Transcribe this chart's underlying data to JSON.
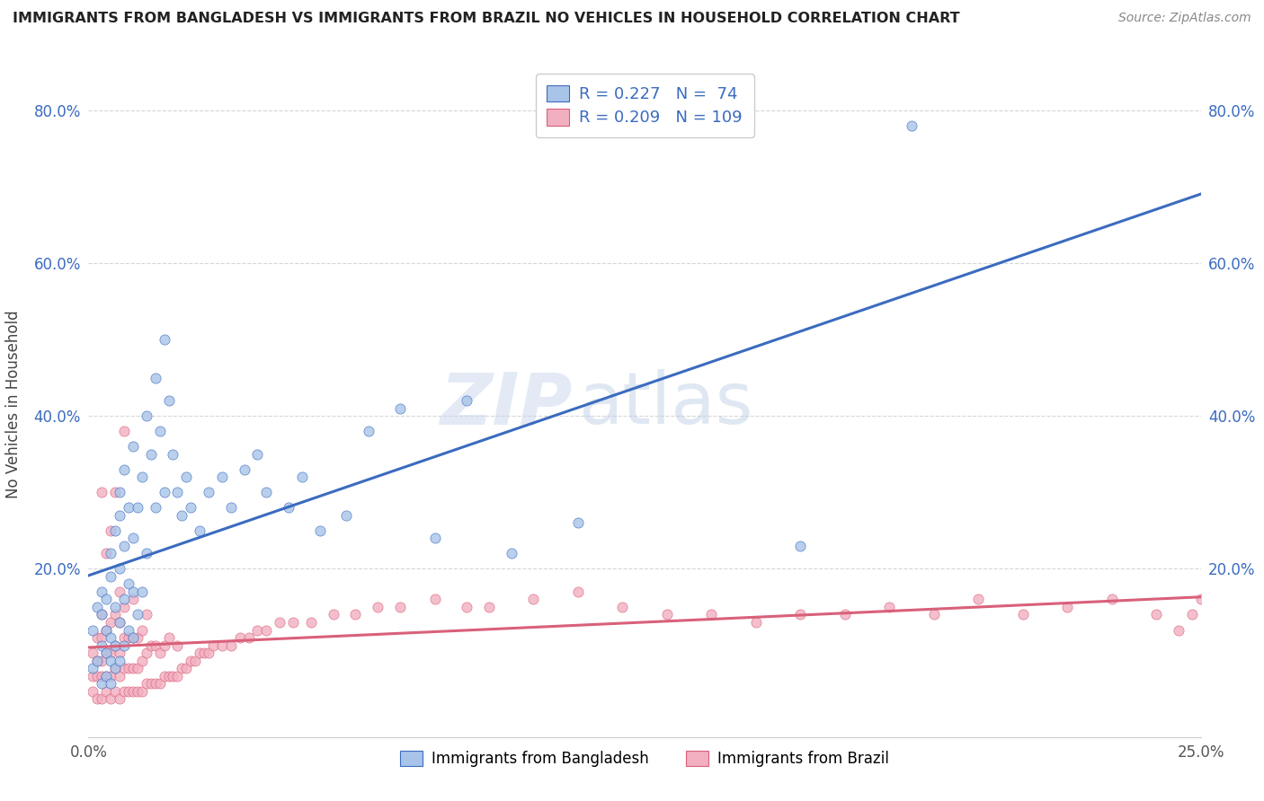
{
  "title": "IMMIGRANTS FROM BANGLADESH VS IMMIGRANTS FROM BRAZIL NO VEHICLES IN HOUSEHOLD CORRELATION CHART",
  "source": "Source: ZipAtlas.com",
  "ylabel": "No Vehicles in Household",
  "xlim": [
    0.0,
    0.25
  ],
  "ylim": [
    -0.02,
    0.85
  ],
  "xtick_labels": [
    "0.0%",
    "25.0%"
  ],
  "ytick_labels": [
    "20.0%",
    "40.0%",
    "60.0%",
    "80.0%"
  ],
  "ytick_values": [
    0.2,
    0.4,
    0.6,
    0.8
  ],
  "xtick_values": [
    0.0,
    0.25
  ],
  "color_bangladesh": "#a8c4e8",
  "color_brazil": "#f2afc0",
  "line_color_bangladesh": "#3b6bbf",
  "line_color_brazil": "#d9607a",
  "legend_r_bangladesh": "0.227",
  "legend_n_bangladesh": "74",
  "legend_r_brazil": "0.209",
  "legend_n_brazil": "109",
  "watermark_zip": "ZIP",
  "watermark_atlas": "atlas",
  "legend_label_bangladesh": "Immigrants from Bangladesh",
  "legend_label_brazil": "Immigrants from Brazil",
  "bangladesh_x": [
    0.001,
    0.001,
    0.002,
    0.002,
    0.003,
    0.003,
    0.003,
    0.003,
    0.004,
    0.004,
    0.004,
    0.004,
    0.005,
    0.005,
    0.005,
    0.005,
    0.005,
    0.006,
    0.006,
    0.006,
    0.006,
    0.007,
    0.007,
    0.007,
    0.007,
    0.007,
    0.008,
    0.008,
    0.008,
    0.008,
    0.009,
    0.009,
    0.009,
    0.01,
    0.01,
    0.01,
    0.01,
    0.011,
    0.011,
    0.012,
    0.012,
    0.013,
    0.013,
    0.014,
    0.015,
    0.015,
    0.016,
    0.017,
    0.017,
    0.018,
    0.019,
    0.02,
    0.021,
    0.022,
    0.023,
    0.025,
    0.027,
    0.03,
    0.032,
    0.035,
    0.038,
    0.04,
    0.045,
    0.048,
    0.052,
    0.058,
    0.063,
    0.07,
    0.078,
    0.085,
    0.095,
    0.11,
    0.16,
    0.185
  ],
  "bangladesh_y": [
    0.07,
    0.12,
    0.08,
    0.15,
    0.05,
    0.1,
    0.14,
    0.17,
    0.06,
    0.09,
    0.12,
    0.16,
    0.05,
    0.08,
    0.11,
    0.19,
    0.22,
    0.07,
    0.1,
    0.15,
    0.25,
    0.08,
    0.13,
    0.2,
    0.27,
    0.3,
    0.1,
    0.16,
    0.23,
    0.33,
    0.12,
    0.18,
    0.28,
    0.11,
    0.17,
    0.24,
    0.36,
    0.14,
    0.28,
    0.17,
    0.32,
    0.22,
    0.4,
    0.35,
    0.28,
    0.45,
    0.38,
    0.3,
    0.5,
    0.42,
    0.35,
    0.3,
    0.27,
    0.32,
    0.28,
    0.25,
    0.3,
    0.32,
    0.28,
    0.33,
    0.35,
    0.3,
    0.28,
    0.32,
    0.25,
    0.27,
    0.38,
    0.41,
    0.24,
    0.42,
    0.22,
    0.26,
    0.23,
    0.78
  ],
  "brazil_x": [
    0.001,
    0.001,
    0.001,
    0.002,
    0.002,
    0.002,
    0.002,
    0.003,
    0.003,
    0.003,
    0.003,
    0.003,
    0.004,
    0.004,
    0.004,
    0.004,
    0.005,
    0.005,
    0.005,
    0.005,
    0.006,
    0.006,
    0.006,
    0.006,
    0.007,
    0.007,
    0.007,
    0.007,
    0.007,
    0.008,
    0.008,
    0.008,
    0.008,
    0.009,
    0.009,
    0.009,
    0.01,
    0.01,
    0.01,
    0.01,
    0.011,
    0.011,
    0.011,
    0.012,
    0.012,
    0.012,
    0.013,
    0.013,
    0.013,
    0.014,
    0.014,
    0.015,
    0.015,
    0.016,
    0.016,
    0.017,
    0.017,
    0.018,
    0.018,
    0.019,
    0.02,
    0.02,
    0.021,
    0.022,
    0.023,
    0.024,
    0.025,
    0.026,
    0.027,
    0.028,
    0.03,
    0.032,
    0.034,
    0.036,
    0.038,
    0.04,
    0.043,
    0.046,
    0.05,
    0.055,
    0.06,
    0.065,
    0.07,
    0.078,
    0.085,
    0.09,
    0.1,
    0.11,
    0.12,
    0.13,
    0.14,
    0.15,
    0.16,
    0.17,
    0.18,
    0.19,
    0.2,
    0.21,
    0.22,
    0.23,
    0.24,
    0.245,
    0.248,
    0.25,
    0.003,
    0.004,
    0.005,
    0.006,
    0.008
  ],
  "brazil_y": [
    0.04,
    0.06,
    0.09,
    0.03,
    0.06,
    0.08,
    0.11,
    0.03,
    0.06,
    0.08,
    0.11,
    0.14,
    0.04,
    0.06,
    0.09,
    0.12,
    0.03,
    0.06,
    0.09,
    0.13,
    0.04,
    0.07,
    0.1,
    0.14,
    0.03,
    0.06,
    0.09,
    0.13,
    0.17,
    0.04,
    0.07,
    0.11,
    0.15,
    0.04,
    0.07,
    0.11,
    0.04,
    0.07,
    0.11,
    0.16,
    0.04,
    0.07,
    0.11,
    0.04,
    0.08,
    0.12,
    0.05,
    0.09,
    0.14,
    0.05,
    0.1,
    0.05,
    0.1,
    0.05,
    0.09,
    0.06,
    0.1,
    0.06,
    0.11,
    0.06,
    0.06,
    0.1,
    0.07,
    0.07,
    0.08,
    0.08,
    0.09,
    0.09,
    0.09,
    0.1,
    0.1,
    0.1,
    0.11,
    0.11,
    0.12,
    0.12,
    0.13,
    0.13,
    0.13,
    0.14,
    0.14,
    0.15,
    0.15,
    0.16,
    0.15,
    0.15,
    0.16,
    0.17,
    0.15,
    0.14,
    0.14,
    0.13,
    0.14,
    0.14,
    0.15,
    0.14,
    0.16,
    0.14,
    0.15,
    0.16,
    0.14,
    0.12,
    0.14,
    0.16,
    0.3,
    0.22,
    0.25,
    0.3,
    0.38
  ]
}
